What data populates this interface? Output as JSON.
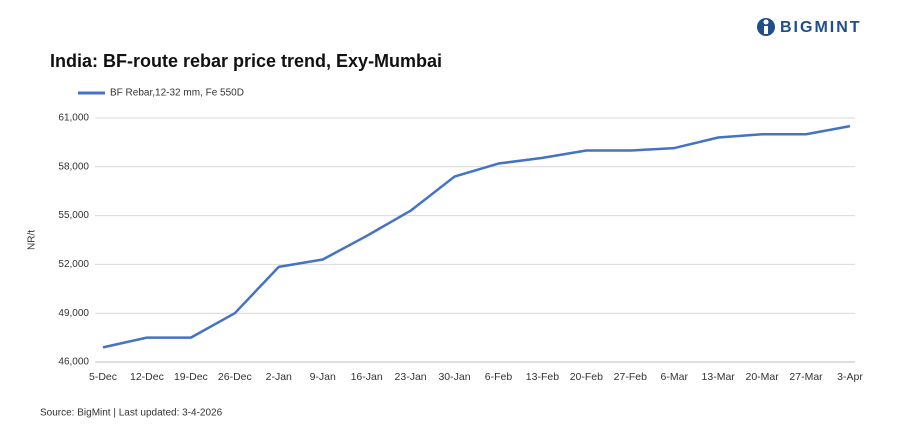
{
  "brand": "BIGMINT",
  "source": "Source: BigMint | Last updated: 3-4-2026",
  "chart_data": {
    "type": "line",
    "title": "India: BF-route rebar price trend, Exy-Mumbai",
    "y_label": "NR/t",
    "categories": [
      "5-Dec",
      "12-Dec",
      "19-Dec",
      "26-Dec",
      "2-Jan",
      "9-Jan",
      "16-Jan",
      "23-Jan",
      "30-Jan",
      "6-Feb",
      "13-Feb",
      "20-Feb",
      "27-Feb",
      "6-Mar",
      "13-Mar",
      "20-Mar",
      "27-Mar",
      "3-Apr"
    ],
    "series": [
      {
        "name": "BF Rebar,12-32 mm, Fe 550D",
        "color": "#4472c4",
        "values": [
          46900,
          47500,
          47500,
          49000,
          51850,
          52300,
          53750,
          55300,
          57400,
          58200,
          58550,
          59000,
          59000,
          59150,
          59800,
          60000,
          60000,
          60500
        ]
      }
    ],
    "ylim": [
      46000,
      61000
    ],
    "yticks": [
      {
        "value": 46000,
        "label": "46,000"
      },
      {
        "value": 49000,
        "label": "49,000"
      },
      {
        "value": 52000,
        "label": "52,000"
      },
      {
        "value": 55000,
        "label": "55,000"
      },
      {
        "value": 58000,
        "label": "58,000"
      },
      {
        "value": 61000,
        "label": "61,000"
      }
    ],
    "grid": true,
    "legend": "top-left"
  }
}
